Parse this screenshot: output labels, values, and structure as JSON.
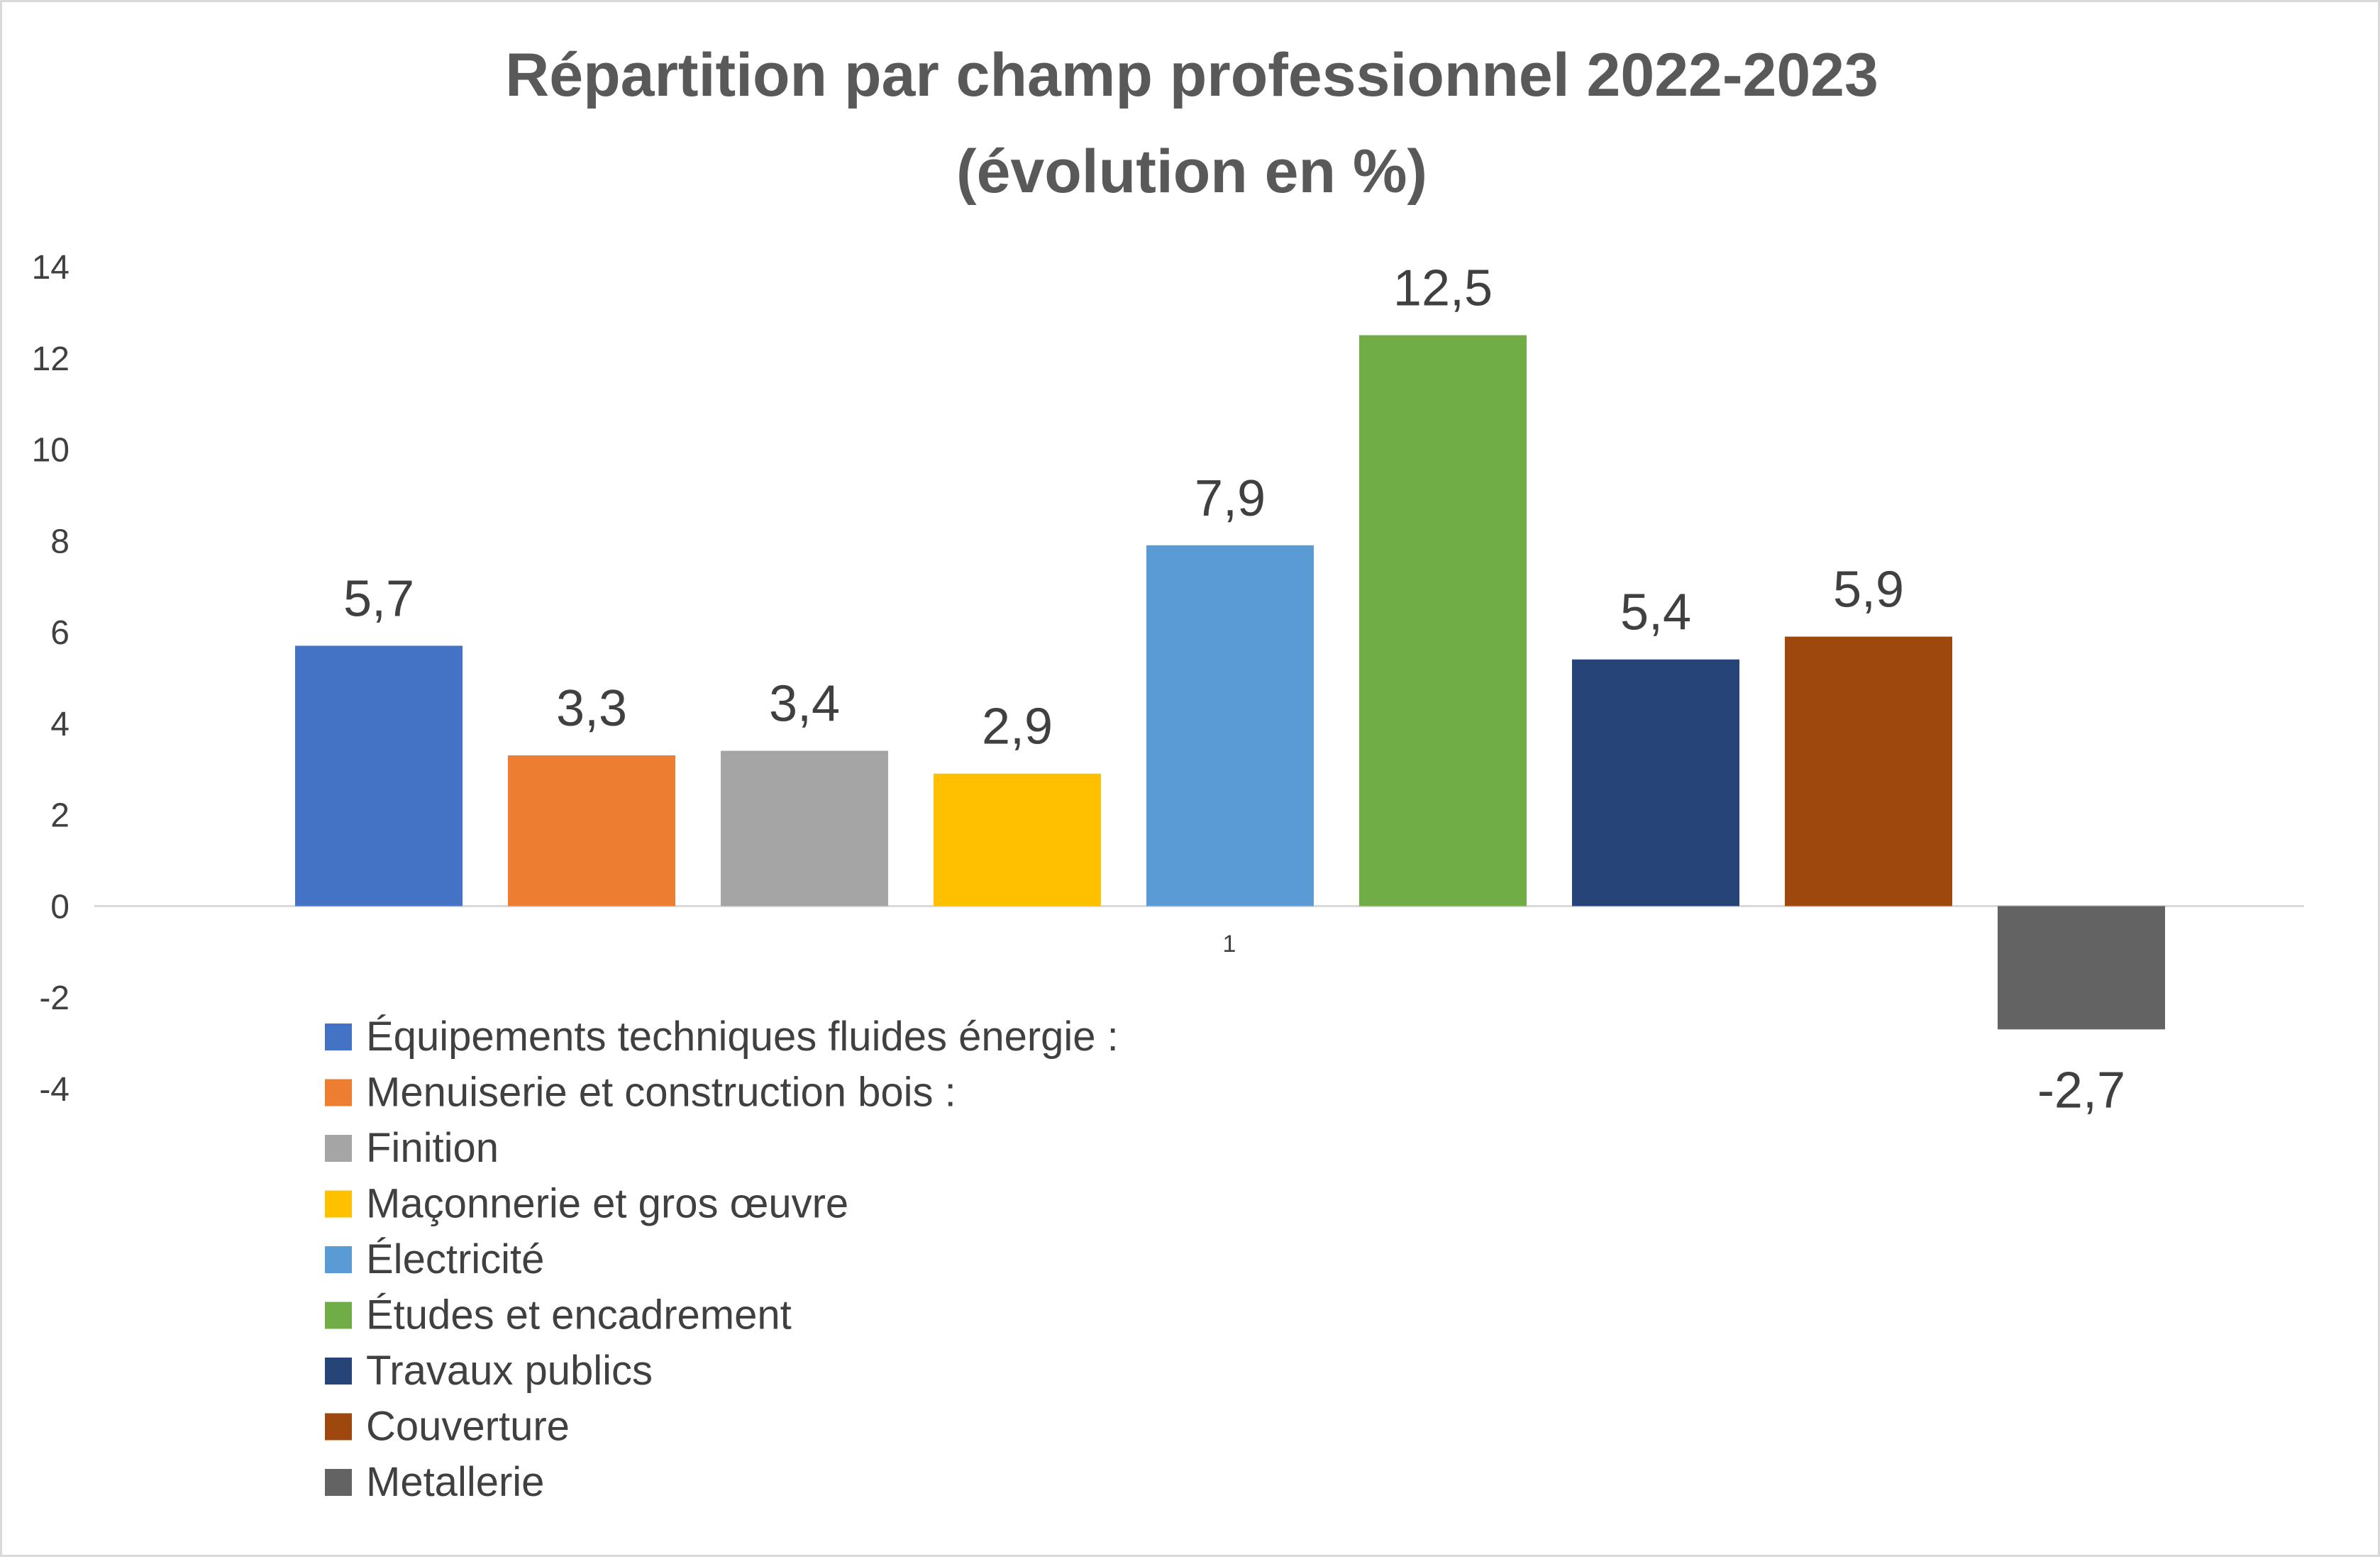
{
  "chart_data": {
    "type": "bar",
    "title_lines": [
      "Répartition par champ professionnel 2022-2023",
      "(évolution en %)"
    ],
    "categories": [
      "1"
    ],
    "series": [
      {
        "name": "Équipements techniques fluides énergie :",
        "values": [
          5.7
        ],
        "label": "5,7",
        "color": "#4472C4"
      },
      {
        "name": "Menuiserie et construction bois :",
        "values": [
          3.3
        ],
        "label": "3,3",
        "color": "#ED7D31"
      },
      {
        "name": "Finition",
        "values": [
          3.4
        ],
        "label": "3,4",
        "color": "#A5A5A5"
      },
      {
        "name": "Maçonnerie et gros œuvre",
        "values": [
          2.9
        ],
        "label": "2,9",
        "color": "#FFC000"
      },
      {
        "name": "Électricité",
        "values": [
          7.9
        ],
        "label": "7,9",
        "color": "#5B9BD5"
      },
      {
        "name": "Études et encadrement",
        "values": [
          12.5
        ],
        "label": "12,5",
        "color": "#70AD47"
      },
      {
        "name": "Travaux publics",
        "values": [
          5.4
        ],
        "label": "5,4",
        "color": "#264478"
      },
      {
        "name": "Couverture",
        "values": [
          5.9
        ],
        "label": "5,9",
        "color": "#9E480E"
      },
      {
        "name": "Metallerie",
        "values": [
          -2.7
        ],
        "label": "-2,7",
        "color": "#636363"
      }
    ],
    "y_ticks": [
      14,
      12,
      10,
      8,
      6,
      4,
      2,
      0,
      -2,
      -4
    ],
    "ylim": [
      -4,
      14
    ],
    "xlabel": "",
    "ylabel": "",
    "legend_position": "bottom-left"
  }
}
